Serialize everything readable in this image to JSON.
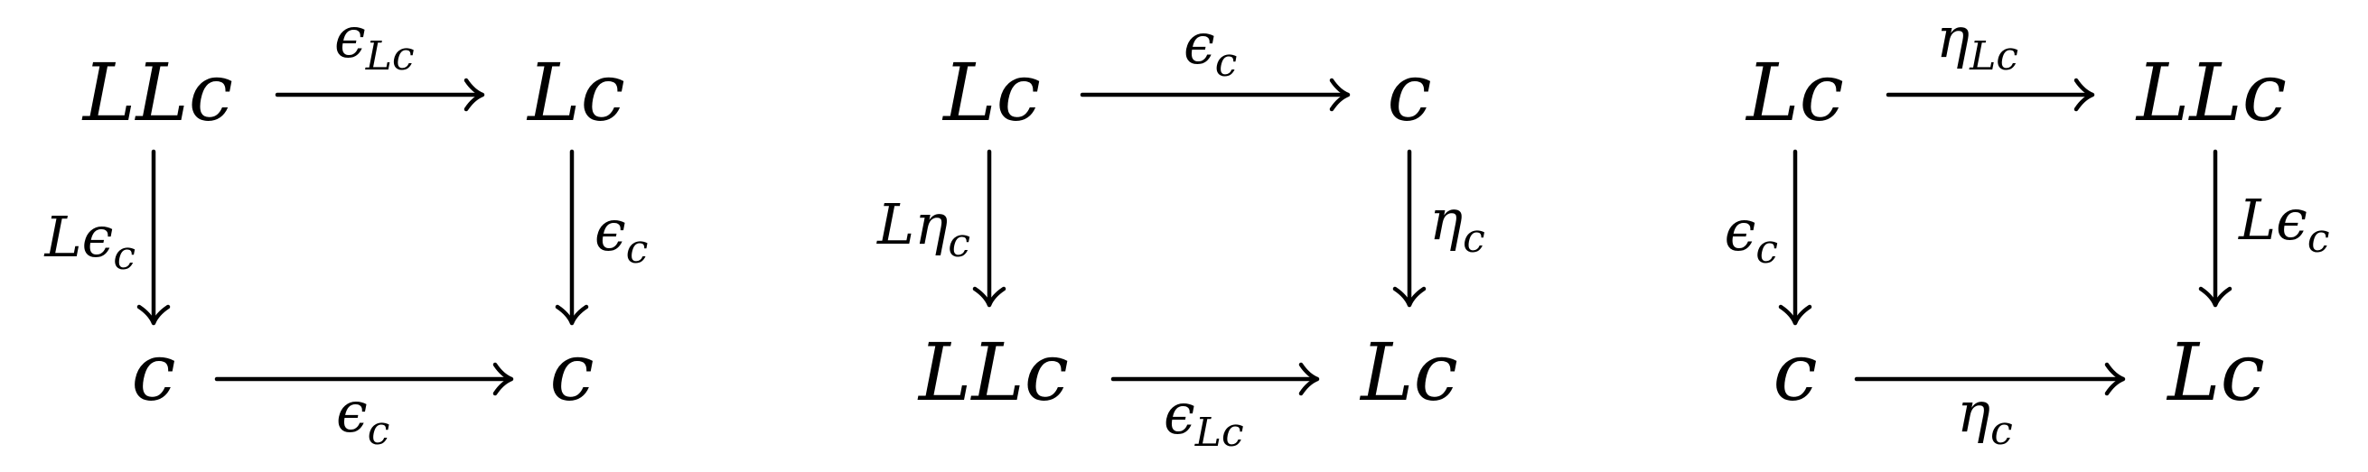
{
  "diagrams": [
    {
      "nodes": {
        "top_left": "LLc",
        "top_right": "Lc",
        "bottom_left": "c",
        "bottom_right": "c"
      },
      "arrows": {
        "top": {
          "main": "ϵ",
          "sub": "Lc"
        },
        "left": {
          "main": "Lϵ",
          "sub": "c"
        },
        "right": {
          "main": "ϵ",
          "sub": "c"
        },
        "bottom": {
          "main": "ϵ",
          "sub": "c"
        }
      }
    },
    {
      "nodes": {
        "top_left": "Lc",
        "top_right": "c",
        "bottom_left": "LLc",
        "bottom_right": "Lc"
      },
      "arrows": {
        "top": {
          "main": "ϵ",
          "sub": "c"
        },
        "left": {
          "main": "Lη",
          "sub": "c"
        },
        "right": {
          "main": "η",
          "sub": "c"
        },
        "bottom": {
          "main": "ϵ",
          "sub": "Lc"
        }
      }
    },
    {
      "nodes": {
        "top_left": "Lc",
        "top_right": "LLc",
        "bottom_left": "c",
        "bottom_right": "Lc"
      },
      "arrows": {
        "top": {
          "main": "η",
          "sub": "Lc"
        },
        "left": {
          "main": "ϵ",
          "sub": "c"
        },
        "right": {
          "main": "Lϵ",
          "sub": "c"
        },
        "bottom": {
          "main": "η",
          "sub": "c"
        }
      }
    }
  ]
}
